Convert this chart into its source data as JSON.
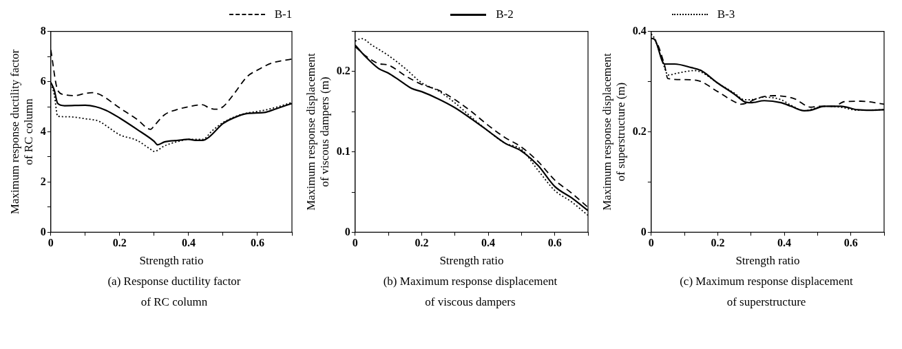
{
  "chart_data": [
    {
      "type": "line",
      "title": "(a) Response ductility factor\nof RC column",
      "xlabel": "Strength ratio",
      "ylabel": "Maximum response ductility factor\nof RC column",
      "xlim": [
        0,
        0.7
      ],
      "ylim": [
        0,
        8
      ],
      "xticks": [
        0,
        {
          "value": 0.1,
          "label": null
        },
        0.2,
        {
          "value": 0.3,
          "label": null
        },
        0.4,
        {
          "value": 0.5,
          "label": null
        },
        0.6,
        {
          "value": 0.7,
          "label": null
        }
      ],
      "yticks": [
        0,
        {
          "value": 1,
          "label": null
        },
        2,
        {
          "value": 3,
          "label": null
        },
        4,
        {
          "value": 5,
          "label": null
        },
        6,
        {
          "value": 7,
          "label": null
        },
        8
      ],
      "grid": false,
      "legend": "top",
      "marker": "none",
      "series": [
        {
          "name": "B-1",
          "color": "#000000",
          "line_style": "dashed",
          "x": [
            0,
            0.02,
            0.04,
            0.07,
            0.1,
            0.12,
            0.14,
            0.2,
            0.25,
            0.29,
            0.3,
            0.33,
            0.37,
            0.4,
            0.44,
            0.46,
            0.48,
            0.5,
            0.53,
            0.57,
            0.6,
            0.64,
            0.7
          ],
          "values": [
            7.26,
            5.66,
            5.48,
            5.44,
            5.53,
            5.56,
            5.5,
            4.95,
            4.5,
            4.1,
            4.24,
            4.68,
            4.9,
            5.0,
            5.08,
            4.95,
            4.9,
            5.0,
            5.48,
            6.2,
            6.46,
            6.73,
            6.9
          ]
        },
        {
          "name": "B-2",
          "color": "#000000",
          "line_style": "solid",
          "x": [
            0,
            0.01,
            0.02,
            0.04,
            0.1,
            0.13,
            0.16,
            0.2,
            0.25,
            0.3,
            0.31,
            0.33,
            0.37,
            0.4,
            0.42,
            0.44,
            0.46,
            0.5,
            0.53,
            0.57,
            0.62,
            0.65,
            0.7
          ],
          "values": [
            5.97,
            5.66,
            5.13,
            5.04,
            5.06,
            5.0,
            4.86,
            4.55,
            4.1,
            3.62,
            3.48,
            3.6,
            3.66,
            3.7,
            3.66,
            3.66,
            3.8,
            4.33,
            4.55,
            4.73,
            4.77,
            4.9,
            5.13
          ]
        },
        {
          "name": "B-3",
          "color": "#000000",
          "line_style": "dotted",
          "x": [
            0,
            0.01,
            0.02,
            0.05,
            0.1,
            0.14,
            0.17,
            0.2,
            0.25,
            0.29,
            0.3,
            0.33,
            0.37,
            0.4,
            0.44,
            0.47,
            0.5,
            0.55,
            0.62,
            0.66,
            0.7
          ],
          "values": [
            5.93,
            5.48,
            4.62,
            4.6,
            4.52,
            4.42,
            4.15,
            3.88,
            3.66,
            3.3,
            3.22,
            3.44,
            3.62,
            3.7,
            3.7,
            4.06,
            4.37,
            4.68,
            4.86,
            5.0,
            5.17
          ]
        }
      ]
    },
    {
      "type": "line",
      "title": "(b) Maximum response displacement\nof viscous dampers",
      "xlabel": "Strength ratio",
      "ylabel": "Maximum response displacement\nof viscous dampers (m)",
      "xlim": [
        0,
        0.7
      ],
      "ylim": [
        0,
        0.25
      ],
      "xticks": [
        0,
        {
          "value": 0.1,
          "label": null
        },
        0.2,
        {
          "value": 0.3,
          "label": null
        },
        0.4,
        {
          "value": 0.5,
          "label": null
        },
        0.6,
        {
          "value": 0.7,
          "label": null
        }
      ],
      "yticks": [
        0,
        {
          "value": 0.05,
          "label": null
        },
        0.1,
        {
          "value": 0.15,
          "label": null
        },
        0.2,
        {
          "value": 0.25,
          "label": null
        }
      ],
      "grid": false,
      "marker": "none",
      "series": [
        {
          "color": "#000000",
          "line_style": "dashed",
          "x": [
            0,
            0.03,
            0.07,
            0.1,
            0.15,
            0.2,
            0.25,
            0.3,
            0.35,
            0.4,
            0.45,
            0.5,
            0.55,
            0.6,
            0.65,
            0.7
          ],
          "values": [
            0.231,
            0.22,
            0.21,
            0.208,
            0.195,
            0.184,
            0.177,
            0.165,
            0.15,
            0.133,
            0.118,
            0.106,
            0.088,
            0.065,
            0.049,
            0.031
          ]
        },
        {
          "color": "#000000",
          "line_style": "solid",
          "x": [
            0,
            0.03,
            0.07,
            0.1,
            0.13,
            0.17,
            0.2,
            0.25,
            0.3,
            0.35,
            0.4,
            0.45,
            0.5,
            0.55,
            0.6,
            0.65,
            0.7
          ],
          "values": [
            0.233,
            0.219,
            0.204,
            0.198,
            0.19,
            0.179,
            0.175,
            0.166,
            0.155,
            0.141,
            0.126,
            0.111,
            0.101,
            0.083,
            0.057,
            0.043,
            0.027
          ]
        },
        {
          "color": "#000000",
          "line_style": "dotted",
          "x": [
            0,
            0.02,
            0.05,
            0.1,
            0.15,
            0.2,
            0.25,
            0.3,
            0.35,
            0.4,
            0.45,
            0.5,
            0.55,
            0.6,
            0.65,
            0.7
          ],
          "values": [
            0.238,
            0.241,
            0.233,
            0.22,
            0.204,
            0.186,
            0.176,
            0.161,
            0.143,
            0.126,
            0.111,
            0.103,
            0.077,
            0.052,
            0.038,
            0.021
          ]
        }
      ]
    },
    {
      "type": "line",
      "title": "(c) Maximum response displacement\nof superstructure",
      "xlabel": "Strength ratio",
      "ylabel": "Maximum response displacement\nof superstructure (m)",
      "xlim": [
        0,
        0.7
      ],
      "ylim": [
        0,
        0.4
      ],
      "xticks": [
        0,
        {
          "value": 0.1,
          "label": null
        },
        0.2,
        {
          "value": 0.3,
          "label": null
        },
        0.4,
        {
          "value": 0.5,
          "label": null
        },
        0.6,
        {
          "value": 0.7,
          "label": null
        }
      ],
      "yticks": [
        0,
        {
          "value": 0.1,
          "label": null
        },
        0.2,
        {
          "value": 0.3,
          "label": null
        },
        0.4
      ],
      "grid": false,
      "marker": "none",
      "series": [
        {
          "color": "#000000",
          "line_style": "dashed",
          "x": [
            0,
            0.01,
            0.04,
            0.05,
            0.1,
            0.14,
            0.2,
            0.25,
            0.27,
            0.29,
            0.32,
            0.37,
            0.43,
            0.48,
            0.5,
            0.55,
            0.58,
            0.63,
            0.7
          ],
          "values": [
            0.386,
            0.384,
            0.333,
            0.306,
            0.304,
            0.302,
            0.28,
            0.26,
            0.255,
            0.258,
            0.267,
            0.272,
            0.266,
            0.249,
            0.251,
            0.251,
            0.26,
            0.261,
            0.255
          ]
        },
        {
          "color": "#000000",
          "line_style": "solid",
          "x": [
            0,
            0.01,
            0.04,
            0.07,
            0.12,
            0.15,
            0.2,
            0.25,
            0.28,
            0.3,
            0.34,
            0.39,
            0.42,
            0.46,
            0.48,
            0.52,
            0.57,
            0.62,
            0.66,
            0.7
          ],
          "values": [
            0.386,
            0.384,
            0.335,
            0.335,
            0.328,
            0.322,
            0.297,
            0.275,
            0.26,
            0.258,
            0.262,
            0.258,
            0.251,
            0.242,
            0.243,
            0.251,
            0.251,
            0.244,
            0.243,
            0.244
          ]
        },
        {
          "color": "#000000",
          "line_style": "dotted",
          "x": [
            0,
            0.01,
            0.04,
            0.05,
            0.08,
            0.13,
            0.15,
            0.2,
            0.25,
            0.28,
            0.3,
            0.34,
            0.39,
            0.42,
            0.46,
            0.52,
            0.57,
            0.62,
            0.7
          ],
          "values": [
            0.395,
            0.386,
            0.328,
            0.313,
            0.317,
            0.322,
            0.319,
            0.297,
            0.277,
            0.264,
            0.264,
            0.269,
            0.264,
            0.253,
            0.242,
            0.251,
            0.249,
            0.243,
            0.244
          ]
        }
      ]
    }
  ]
}
